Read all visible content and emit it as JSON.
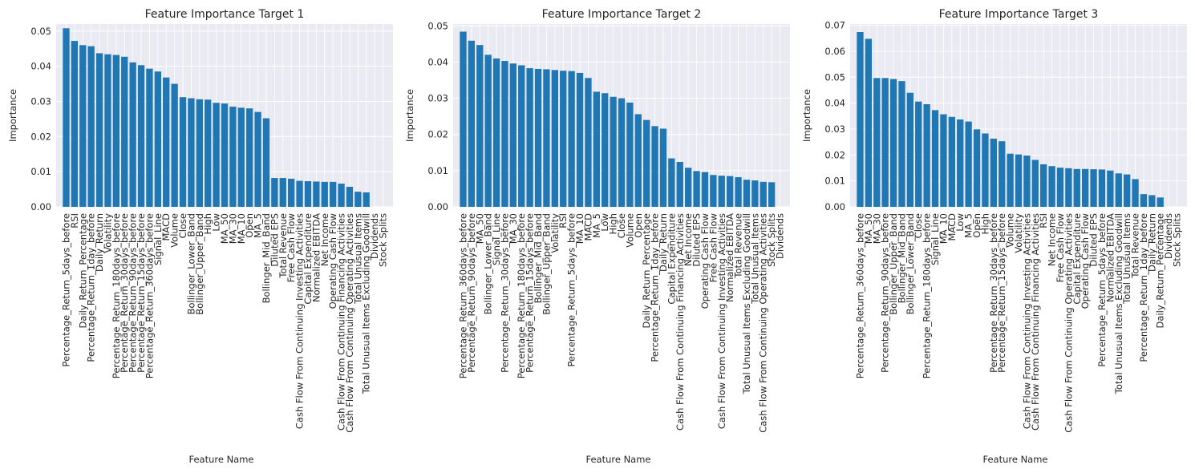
{
  "chart_data": [
    {
      "type": "bar",
      "title": "Feature Importance Target 1",
      "xlabel": "Feature Name",
      "ylabel": "Importance",
      "ylim": [
        0,
        0.052
      ],
      "yticks": [
        "0.00",
        "0.01",
        "0.02",
        "0.03",
        "0.04",
        "0.05"
      ],
      "color": "#1f77b4",
      "background": "#eaeaf2",
      "grid": true,
      "categories": [
        "Percentage_Return_5days_before",
        "RSI",
        "Daily_Return_Percentage",
        "Percentage_Return_1day_before",
        "Daily_Return",
        "Volatility",
        "Percentage_Return_180days_before",
        "Percentage_Return_30days_before",
        "Percentage_Return_90days_before",
        "Percentage_Return_15days_before",
        "Percentage_Return_360days_before",
        "Signal_Line",
        "MACD",
        "Volume",
        "Close",
        "Bollinger_Lower_Band",
        "Bollinger_Upper_Band",
        "High",
        "Low",
        "MA_50",
        "MA_30",
        "MA_10",
        "Open",
        "MA_5",
        "Bollinger_Mid_Band",
        "Diluted EPS",
        "Total Revenue",
        "Free Cash Flow",
        "Cash Flow From Continuing Investing Activities",
        "Capital Expenditure",
        "Normalized EBITDA",
        "Net Income",
        "Operating Cash Flow",
        "Cash Flow From Continuing Financing Activities",
        "Cash Flow From Continuing Operating Activities",
        "Total Unusual Items",
        "Total Unusual Items Excluding Goodwill",
        "Dividends",
        "Stock Splits"
      ],
      "values": [
        0.0508,
        0.0472,
        0.046,
        0.0457,
        0.0437,
        0.0434,
        0.0432,
        0.0427,
        0.0411,
        0.0403,
        0.0393,
        0.0385,
        0.0368,
        0.035,
        0.0312,
        0.0309,
        0.0306,
        0.0305,
        0.0296,
        0.0294,
        0.0285,
        0.0282,
        0.028,
        0.027,
        0.0252,
        0.0082,
        0.0082,
        0.008,
        0.0074,
        0.0073,
        0.0072,
        0.0071,
        0.0071,
        0.0066,
        0.0057,
        0.0043,
        0.0041,
        0.0,
        0.0
      ]
    },
    {
      "type": "bar",
      "title": "Feature Importance Target 2",
      "xlabel": "Feature Name",
      "ylabel": "Importance",
      "ylim": [
        0,
        0.0505
      ],
      "yticks": [
        "0.00",
        "0.01",
        "0.02",
        "0.03",
        "0.04",
        "0.05"
      ],
      "color": "#1f77b4",
      "background": "#eaeaf2",
      "grid": true,
      "categories": [
        "Percentage_Return_360days_before",
        "Percentage_Return_90days_before",
        "MA_50",
        "Bollinger_Lower_Band",
        "Signal_Line",
        "Percentage_Return_30days_before",
        "MA_30",
        "Percentage_Return_180days_before",
        "Percentage_Return_15days_before",
        "Bollinger_Mid_Band",
        "Bollinger_Upper_Band",
        "Volatility",
        "RSI",
        "Percentage_Return_5days_before",
        "MA_10",
        "MACD",
        "MA_5",
        "Low",
        "High",
        "Close",
        "Volume",
        "Open",
        "Daily_Return_Percentage",
        "Percentage_Return_1day_before",
        "Daily_Return",
        "Capital Expenditure",
        "Cash Flow From Continuing Financing Activities",
        "Net Income",
        "Diluted EPS",
        "Operating Cash Flow",
        "Free Cash Flow",
        "Cash Flow From Continuing Investing Activities",
        "Normalized EBITDA",
        "Total Revenue",
        "Total Unusual Items Excluding Goodwill",
        "Total Unusual Items",
        "Cash Flow From Continuing Operating Activities",
        "Stock Splits",
        "Dividends"
      ],
      "values": [
        0.0484,
        0.0459,
        0.0447,
        0.042,
        0.041,
        0.0403,
        0.0396,
        0.0391,
        0.0383,
        0.0381,
        0.038,
        0.0378,
        0.0376,
        0.0375,
        0.037,
        0.0356,
        0.0318,
        0.0314,
        0.0304,
        0.03,
        0.0288,
        0.0256,
        0.024,
        0.0223,
        0.0216,
        0.0134,
        0.0124,
        0.0108,
        0.0099,
        0.0096,
        0.0088,
        0.0086,
        0.0085,
        0.0082,
        0.0075,
        0.0073,
        0.0069,
        0.0068,
        0.0
      ]
    },
    {
      "type": "bar",
      "title": "Feature Importance Target 3",
      "xlabel": "Feature Name",
      "ylabel": "Importance",
      "ylim": [
        0,
        0.0705
      ],
      "yticks": [
        "0.00",
        "0.01",
        "0.02",
        "0.03",
        "0.04",
        "0.05",
        "0.06",
        "0.07"
      ],
      "color": "#1f77b4",
      "background": "#eaeaf2",
      "grid": true,
      "categories": [
        "Percentage_Return_360days_before",
        "MA_50",
        "MA_30",
        "Percentage_Return_90days_before",
        "Bollinger_Upper_Band",
        "Bollinger_Mid_Band",
        "Bollinger_Lower_Band",
        "Close",
        "Percentage_Return_180days_before",
        "Signal_Line",
        "MA_10",
        "MACD",
        "Low",
        "MA_5",
        "Open",
        "High",
        "Percentage_Return_30days_before",
        "Percentage_Return_15days_before",
        "Volume",
        "Volatility",
        "Cash Flow From Continuing Investing Activities",
        "Cash Flow From Continuing Financing Activities",
        "RSI",
        "Net Income",
        "Free Cash Flow",
        "Cash Flow From Continuing Operating Activities",
        "Capital Expenditure",
        "Operating Cash Flow",
        "Diluted EPS",
        "Percentage_Return_5days_before",
        "Normalized EBITDA",
        "Total Unusual Items Excluding Goodwill",
        "Total Unusual Items",
        "Total Revenue",
        "Percentage_Return_1day_before",
        "Daily_Return",
        "Daily_Return_Percentage",
        "Dividends",
        "Stock Splits"
      ],
      "values": [
        0.0674,
        0.0648,
        0.0497,
        0.0497,
        0.0493,
        0.0485,
        0.044,
        0.0406,
        0.0396,
        0.0373,
        0.0357,
        0.0347,
        0.0337,
        0.0329,
        0.0299,
        0.0283,
        0.0263,
        0.0253,
        0.0205,
        0.0202,
        0.0198,
        0.0181,
        0.0164,
        0.0157,
        0.0151,
        0.0149,
        0.0146,
        0.0146,
        0.0145,
        0.0144,
        0.014,
        0.0129,
        0.0125,
        0.0107,
        0.0049,
        0.0045,
        0.0036,
        0.0,
        0.0
      ]
    }
  ]
}
